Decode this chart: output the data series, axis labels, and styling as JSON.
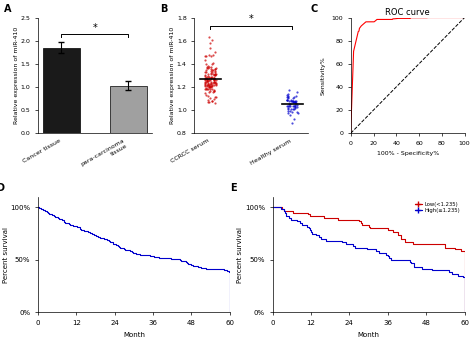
{
  "panel_A": {
    "label": "A",
    "categories": [
      "Cancer tissue",
      "para-carcinoma\ntissue"
    ],
    "values": [
      1.85,
      1.03
    ],
    "errors": [
      0.12,
      0.1
    ],
    "bar_colors": [
      "#1a1a1a",
      "#a0a0a0"
    ],
    "ylabel": "Relative expression of miR-410",
    "ylim": [
      0,
      2.5
    ],
    "yticks": [
      0.0,
      0.5,
      1.0,
      1.5,
      2.0,
      2.5
    ],
    "sig_text": "*",
    "sig_y": 2.15,
    "sig_x1": 0,
    "sig_x2": 1
  },
  "panel_B": {
    "label": "B",
    "categories": [
      "CCRCC serum",
      "Healthy serum"
    ],
    "ylabel": "Relative expression of miR-410",
    "ylim": [
      0.8,
      1.8
    ],
    "yticks": [
      0.8,
      1.0,
      1.2,
      1.4,
      1.6,
      1.8
    ],
    "colors": [
      "#cc0000",
      "#0000cc"
    ],
    "ccrcc_mean": 1.25,
    "ccrcc_std": 0.09,
    "ccrcc_n": 130,
    "healthy_mean": 1.05,
    "healthy_std": 0.055,
    "healthy_n": 55,
    "sig_text": "*",
    "sig_y": 1.73,
    "sig_x1": 0,
    "sig_x2": 1
  },
  "panel_C": {
    "label": "C",
    "title": "ROC curve",
    "xlabel": "100% - Specificity%",
    "ylabel": "Sensitivity%",
    "xlim": [
      0,
      100
    ],
    "ylim": [
      0,
      100
    ],
    "xticks": [
      0,
      20,
      40,
      60,
      80,
      100
    ],
    "yticks": [
      0,
      20,
      40,
      60,
      80,
      100
    ]
  },
  "panel_D": {
    "label": "D",
    "xlabel": "Month",
    "ylabel": "Percent survival",
    "xlim": [
      0,
      60
    ],
    "ylim": [
      0,
      110
    ],
    "xticks": [
      0,
      12,
      24,
      36,
      48,
      60
    ],
    "yticks": [
      0,
      50,
      100
    ],
    "yticklabels": [
      "0%",
      "50%",
      "100%"
    ],
    "curve_color": "#0000cc"
  },
  "panel_E": {
    "label": "E",
    "xlabel": "Month",
    "ylabel": "Percent survival",
    "xlim": [
      0,
      60
    ],
    "ylim": [
      0,
      110
    ],
    "xticks": [
      0,
      12,
      24,
      36,
      48,
      60
    ],
    "yticks": [
      0,
      50,
      100
    ],
    "yticklabels": [
      "0%",
      "50%",
      "100%"
    ],
    "low_color": "#cc0000",
    "high_color": "#0000cc",
    "legend_low": "Low(<1.235)",
    "legend_high": "High(≥1.235)"
  },
  "figure_bg": "#ffffff"
}
